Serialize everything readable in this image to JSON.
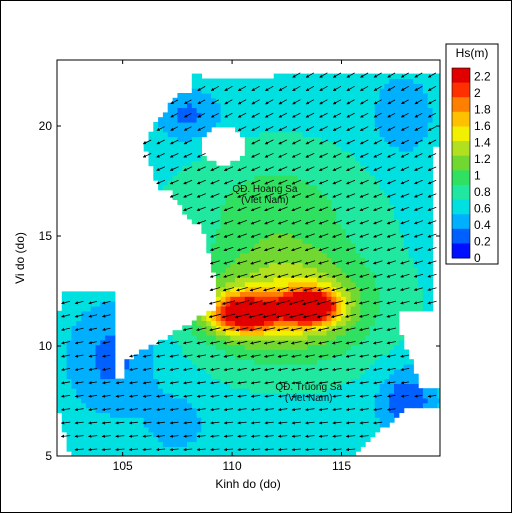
{
  "chart_data": {
    "type": "heatmap",
    "subtype": "filled-contour with vector arrows",
    "xlabel": "Kinh do (do)",
    "ylabel": "Vi do (do)",
    "xlim": [
      102.0,
      119.5
    ],
    "ylim": [
      5,
      23
    ],
    "xticks": [
      105,
      110,
      115
    ],
    "yticks": [
      5,
      10,
      15,
      20
    ],
    "colorbar": {
      "title": "Hs(m)",
      "min": 0,
      "max": 2.3,
      "tick_labels": [
        "2.2",
        "2",
        "1.8",
        "1.6",
        "1.4",
        "1.2",
        "1",
        "0.8",
        "0.6",
        "0.4",
        "0.2",
        "0"
      ],
      "tick_values": [
        2.2,
        2.0,
        1.8,
        1.6,
        1.4,
        1.2,
        1.0,
        0.8,
        0.6,
        0.4,
        0.2,
        0.0
      ],
      "colors": [
        "#0010ff",
        "#0060ff",
        "#00b0ff",
        "#00e0e0",
        "#20e8a0",
        "#30e060",
        "#70d830",
        "#b0e020",
        "#f0f000",
        "#ffc000",
        "#ff8000",
        "#ff3000",
        "#e00000"
      ]
    },
    "wave_height_peaks": [
      {
        "lon": 110.5,
        "lat": 11.5,
        "hs": 2.0
      },
      {
        "lon": 113.5,
        "lat": 11.8,
        "hs": 2.1
      }
    ],
    "wave_direction": "toward southwest (arrows pointing WSW)",
    "annotations": [
      {
        "text": "QĐ. Hoang Sa",
        "lon": 111.5,
        "lat": 17.0
      },
      {
        "text": "(Viet Nam)",
        "lon": 111.5,
        "lat": 16.5
      },
      {
        "text": "QĐ. Truong Sa",
        "lon": 113.5,
        "lat": 8.0
      },
      {
        "text": "(Viet Nam)",
        "lon": 113.5,
        "lat": 7.5
      }
    ]
  }
}
